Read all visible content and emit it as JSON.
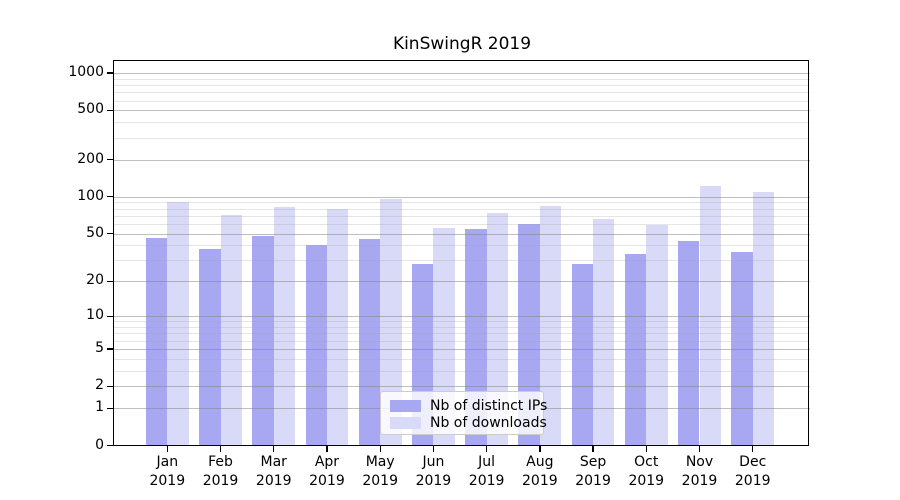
{
  "title": "KinSwingR 2019",
  "chart_data": {
    "type": "bar",
    "title": "KinSwingR 2019",
    "y_scale": "log10(1+x)",
    "grid": "both",
    "legend_position": "lower-center",
    "year": "2019",
    "categories": [
      "Jan",
      "Feb",
      "Mar",
      "Apr",
      "May",
      "Jun",
      "Jul",
      "Aug",
      "Sep",
      "Oct",
      "Nov",
      "Dec"
    ],
    "series": [
      {
        "name": "Nb of distinct IPs",
        "color": "#a8a8f2",
        "values": [
          46,
          37,
          48,
          40,
          45,
          28,
          54,
          60,
          28,
          34,
          43,
          35
        ]
      },
      {
        "name": "Nb of downloads",
        "color": "#d9d9f8",
        "values": [
          91,
          71,
          82,
          80,
          95,
          55,
          74,
          84,
          66,
          59,
          121,
          110
        ]
      }
    ],
    "y_ticks": [
      0,
      1,
      2,
      5,
      10,
      20,
      50,
      100,
      200,
      500,
      1000
    ],
    "y_minor_ticks": [
      3,
      4,
      6,
      7,
      8,
      9,
      30,
      40,
      60,
      70,
      80,
      90,
      300,
      400,
      600,
      700,
      800,
      900
    ],
    "ylim": [
      0,
      1250
    ]
  },
  "colors": {
    "major_grid": "rgba(128,128,128,0.5)",
    "minor_grid": "rgba(160,160,160,0.28)",
    "axis": "#000000",
    "background": "#ffffff"
  }
}
